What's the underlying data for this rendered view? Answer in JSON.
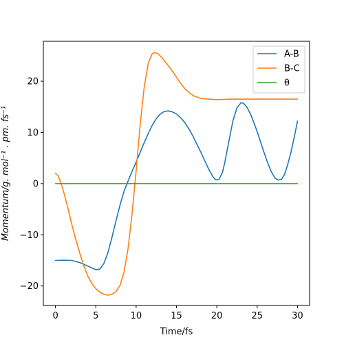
{
  "chart_data": {
    "type": "line",
    "xlabel": "Time/fs",
    "ylabel": "Momentum/g. mol⁻¹ . pm. fs⁻¹",
    "xlim": [
      -1.5,
      31.5
    ],
    "ylim": [
      -23.8,
      27.8
    ],
    "xticks": [
      0,
      5,
      10,
      15,
      20,
      25,
      30
    ],
    "yticks": [
      -20,
      -10,
      0,
      10,
      20
    ],
    "legend_position": "top-right",
    "grid": false,
    "series": [
      {
        "name": "A-B",
        "color": "#1f77b4",
        "points": [
          [
            0,
            -15
          ],
          [
            1,
            -14.95
          ],
          [
            2,
            -15
          ],
          [
            3,
            -15.4
          ],
          [
            4,
            -16.1
          ],
          [
            5,
            -16.8
          ],
          [
            5.5,
            -16.7
          ],
          [
            6,
            -15.6
          ],
          [
            6.5,
            -13.5
          ],
          [
            7,
            -10.5
          ],
          [
            7.5,
            -7.3
          ],
          [
            8,
            -4.2
          ],
          [
            8.5,
            -1.5
          ],
          [
            9,
            0.5
          ],
          [
            9.5,
            2.4
          ],
          [
            10,
            4.2
          ],
          [
            10.5,
            6.1
          ],
          [
            11,
            8
          ],
          [
            11.5,
            9.8
          ],
          [
            12,
            11.4
          ],
          [
            12.5,
            12.7
          ],
          [
            13,
            13.6
          ],
          [
            13.5,
            14.1
          ],
          [
            14,
            14.2
          ],
          [
            14.5,
            14
          ],
          [
            15,
            13.6
          ],
          [
            15.5,
            12.9
          ],
          [
            16,
            12
          ],
          [
            16.5,
            10.8
          ],
          [
            17,
            9.4
          ],
          [
            17.5,
            7.8
          ],
          [
            18,
            6.2
          ],
          [
            18.5,
            4.5
          ],
          [
            19,
            2.8
          ],
          [
            19.5,
            1.4
          ],
          [
            19.8,
            0.8
          ],
          [
            20,
            0.7
          ],
          [
            20.3,
            0.9
          ],
          [
            20.7,
            2.2
          ],
          [
            21,
            4.2
          ],
          [
            21.5,
            8.3
          ],
          [
            22,
            12.3
          ],
          [
            22.5,
            14.8
          ],
          [
            23,
            15.8
          ],
          [
            23.3,
            15.7
          ],
          [
            23.7,
            15
          ],
          [
            24.2,
            13.5
          ],
          [
            24.7,
            11.5
          ],
          [
            25.2,
            9.2
          ],
          [
            25.7,
            6.8
          ],
          [
            26.2,
            4.5
          ],
          [
            26.7,
            2.5
          ],
          [
            27.2,
            1.1
          ],
          [
            27.6,
            0.7
          ],
          [
            28,
            0.8
          ],
          [
            28.4,
            1.8
          ],
          [
            28.8,
            3.8
          ],
          [
            29.2,
            6.2
          ],
          [
            29.6,
            9.1
          ],
          [
            30,
            12.2
          ]
        ]
      },
      {
        "name": "B-C",
        "color": "#ff7f0e",
        "points": [
          [
            0,
            2
          ],
          [
            0.3,
            1.6
          ],
          [
            0.6,
            0.5
          ],
          [
            1,
            -1.5
          ],
          [
            1.5,
            -4.5
          ],
          [
            2,
            -7.8
          ],
          [
            2.5,
            -10.8
          ],
          [
            3,
            -13.5
          ],
          [
            3.5,
            -16
          ],
          [
            4,
            -18
          ],
          [
            4.5,
            -19.5
          ],
          [
            5,
            -20.5
          ],
          [
            5.5,
            -21.2
          ],
          [
            6,
            -21.6
          ],
          [
            6.5,
            -21.8
          ],
          [
            7,
            -21.6
          ],
          [
            7.5,
            -21.1
          ],
          [
            8,
            -19.9
          ],
          [
            8.5,
            -17.3
          ],
          [
            9,
            -12.7
          ],
          [
            9.5,
            -5.8
          ],
          [
            10,
            2.5
          ],
          [
            10.5,
            11.5
          ],
          [
            11,
            18.8
          ],
          [
            11.5,
            23.5
          ],
          [
            12,
            25.4
          ],
          [
            12.3,
            25.6
          ],
          [
            12.7,
            25.4
          ],
          [
            13.2,
            24.6
          ],
          [
            13.7,
            23.6
          ],
          [
            14.2,
            22.6
          ],
          [
            14.7,
            21.5
          ],
          [
            15.2,
            20.3
          ],
          [
            15.7,
            19.2
          ],
          [
            16.2,
            18.3
          ],
          [
            16.7,
            17.6
          ],
          [
            17.2,
            17.1
          ],
          [
            17.7,
            16.8
          ],
          [
            18.2,
            16.6
          ],
          [
            19,
            16.5
          ],
          [
            20,
            16.4
          ],
          [
            22,
            16.5
          ],
          [
            24,
            16.5
          ],
          [
            26,
            16.5
          ],
          [
            28,
            16.5
          ],
          [
            30,
            16.5
          ]
        ]
      },
      {
        "name": "θ",
        "color": "#2ca02c",
        "points": [
          [
            0,
            0
          ],
          [
            30,
            0
          ]
        ]
      }
    ]
  }
}
